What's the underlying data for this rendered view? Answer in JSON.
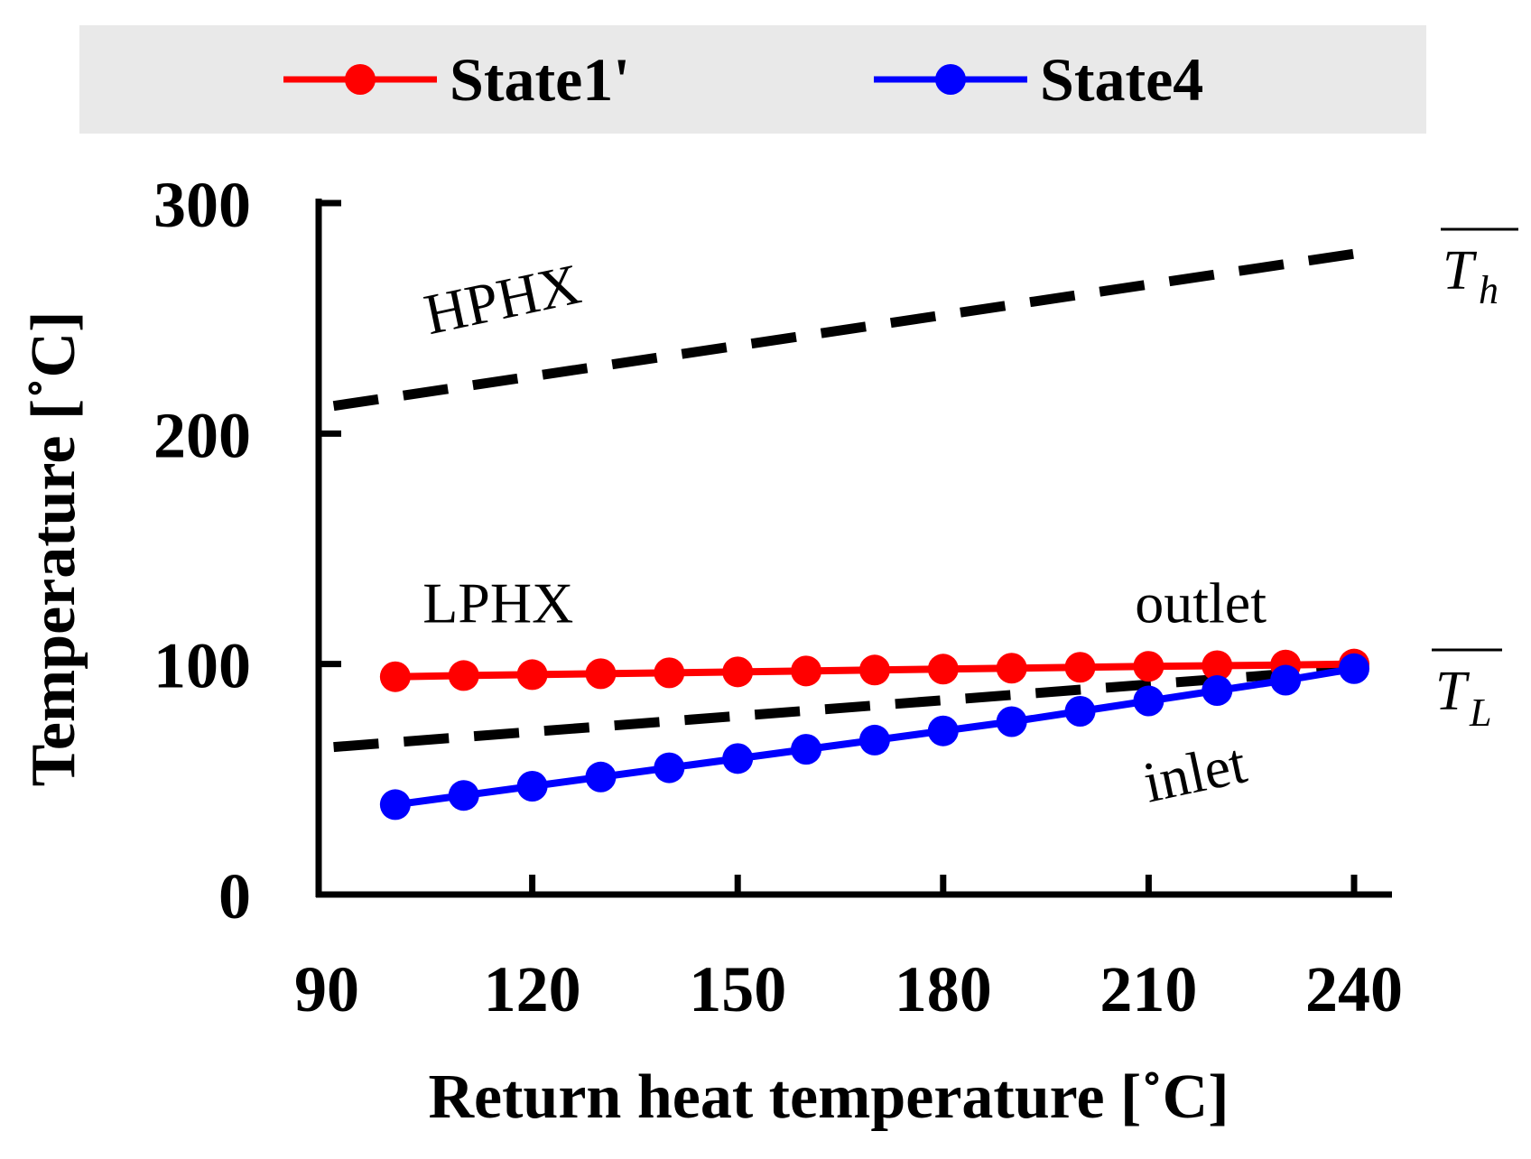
{
  "chart_data": {
    "type": "line",
    "xlabel": "Return heat temperature [˚C]",
    "ylabel": "Temperature [˚C]",
    "xlim": [
      90,
      240
    ],
    "ylim": [
      0,
      300
    ],
    "xticks": [
      90,
      120,
      150,
      180,
      210,
      240
    ],
    "yticks": [
      0,
      100,
      200,
      300
    ],
    "legend": {
      "placement": "top",
      "background": "#e9e9e9"
    },
    "series": [
      {
        "name": "State1'",
        "color": "#ff0000",
        "marker": "circle",
        "x": [
          100,
          110,
          120,
          130,
          140,
          150,
          160,
          170,
          180,
          190,
          200,
          210,
          220,
          230,
          240
        ],
        "y": [
          94.5,
          95,
          95.4,
          95.8,
          96.2,
          96.6,
          97,
          97.4,
          97.8,
          98.2,
          98.6,
          99,
          99.3,
          99.6,
          100
        ]
      },
      {
        "name": "State4",
        "color": "#0000ff",
        "marker": "circle",
        "x": [
          100,
          110,
          120,
          130,
          140,
          150,
          160,
          170,
          180,
          190,
          200,
          210,
          220,
          230,
          240
        ],
        "y": [
          39,
          43,
          47,
          51,
          55,
          59,
          63,
          67,
          71,
          75,
          79.5,
          84,
          88.5,
          93,
          98
        ]
      }
    ],
    "reference_lines": [
      {
        "name": "T_h",
        "symbol": "T",
        "subscript": "h",
        "style": "dashed",
        "color": "#000000",
        "x": [
          91,
          240
        ],
        "y": [
          212,
          278
        ]
      },
      {
        "name": "T_L",
        "symbol": "T",
        "subscript": "L",
        "style": "dashed",
        "color": "#000000",
        "x": [
          91,
          240
        ],
        "y": [
          64,
          98
        ]
      }
    ],
    "annotations": [
      {
        "text": "HPHX",
        "x": 105,
        "y": 243,
        "rotation": -12
      },
      {
        "text": "LPHX",
        "x": 104,
        "y": 118,
        "rotation": 0
      },
      {
        "text": "outlet",
        "x": 208,
        "y": 118,
        "rotation": 0
      },
      {
        "text": "inlet",
        "x": 210,
        "y": 40,
        "rotation": -12
      }
    ]
  }
}
